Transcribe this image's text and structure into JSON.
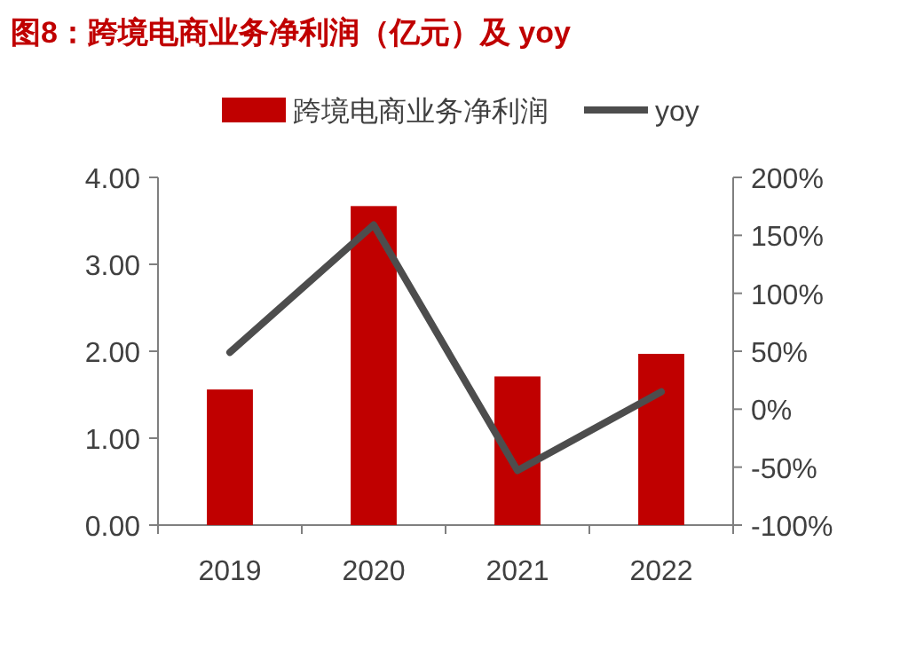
{
  "chart_data": {
    "type": "bar",
    "title": "图8：跨境电商业务净利润（亿元）及 yoy",
    "categories": [
      "2019",
      "2020",
      "2021",
      "2022"
    ],
    "series": [
      {
        "name": "跨境电商业务净利润",
        "color": "#c00000",
        "values": [
          1.56,
          3.67,
          1.71,
          1.97
        ]
      },
      {
        "type": "line",
        "name": "yoy",
        "color": "#4d4d4d",
        "axis": "y2",
        "values": [
          49,
          159,
          -53,
          15
        ]
      }
    ],
    "ylim": [
      0,
      4
    ],
    "yticks": [
      {
        "value": 0,
        "label": "0.00"
      },
      {
        "value": 1,
        "label": "1.00"
      },
      {
        "value": 2,
        "label": "2.00"
      },
      {
        "value": 3,
        "label": "3.00"
      },
      {
        "value": 4,
        "label": "4.00"
      }
    ],
    "y2lim": [
      -100,
      200
    ],
    "y2ticks": [
      {
        "value": -100,
        "label": "-100%"
      },
      {
        "value": -50,
        "label": "-50%"
      },
      {
        "value": 0,
        "label": "0%"
      },
      {
        "value": 50,
        "label": "50%"
      },
      {
        "value": 100,
        "label": "100%"
      },
      {
        "value": 150,
        "label": "150%"
      },
      {
        "value": 200,
        "label": "200%"
      }
    ],
    "legend": "top"
  }
}
